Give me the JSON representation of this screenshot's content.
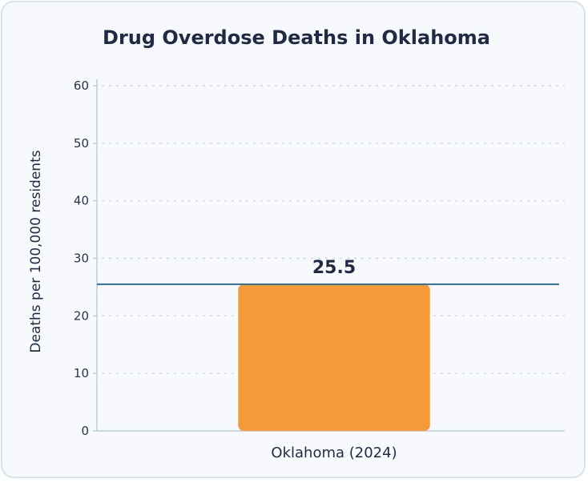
{
  "chart_data": {
    "type": "bar",
    "title": "Drug Overdose Deaths in Oklahoma",
    "xlabel": "",
    "ylabel": "Deaths per 100,000 residents",
    "categories": [
      "Oklahoma (2024)"
    ],
    "values": [
      25.5
    ],
    "data_labels": [
      "25.5"
    ],
    "ylim": [
      0,
      60
    ],
    "yticks": [
      0,
      10,
      20,
      30,
      40,
      50,
      60
    ],
    "ytick_labels": [
      "0",
      "10",
      "20",
      "30",
      "40",
      "50",
      "60"
    ],
    "reference_line": 25.5,
    "grid": true,
    "grid_style": "dotted",
    "colors": {
      "bar": "#f59a38",
      "reference_line": "#2f6e8f",
      "grid": "#c5d2dc",
      "axis": "#b9cfdd"
    }
  }
}
